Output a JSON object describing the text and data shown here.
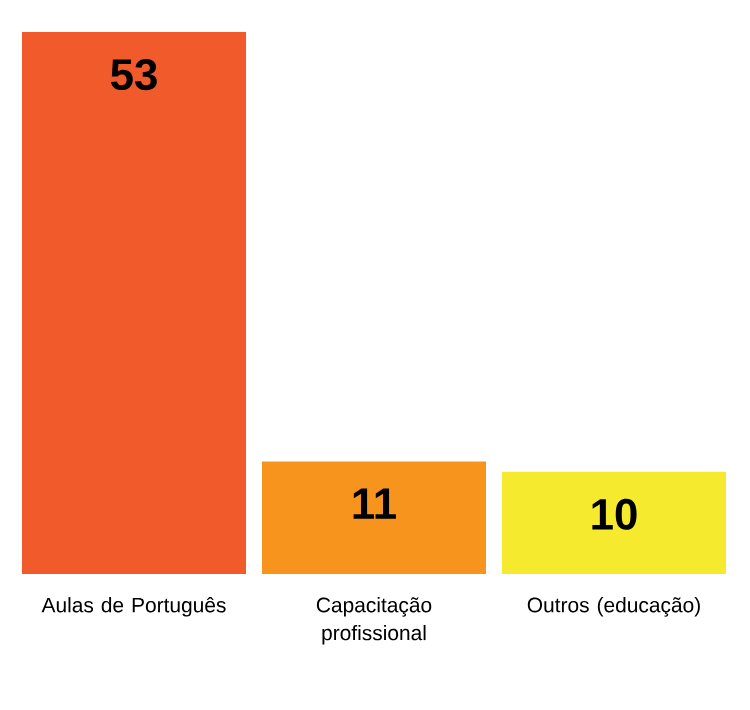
{
  "chart_data": {
    "type": "bar",
    "categories": [
      "Aulas de Português",
      "Capacitação profissional",
      "Outros (educação)"
    ],
    "values": [
      53,
      11,
      10
    ],
    "colors": [
      "#f15a2b",
      "#f7941d",
      "#f5ea2e"
    ],
    "data_labels": true
  }
}
